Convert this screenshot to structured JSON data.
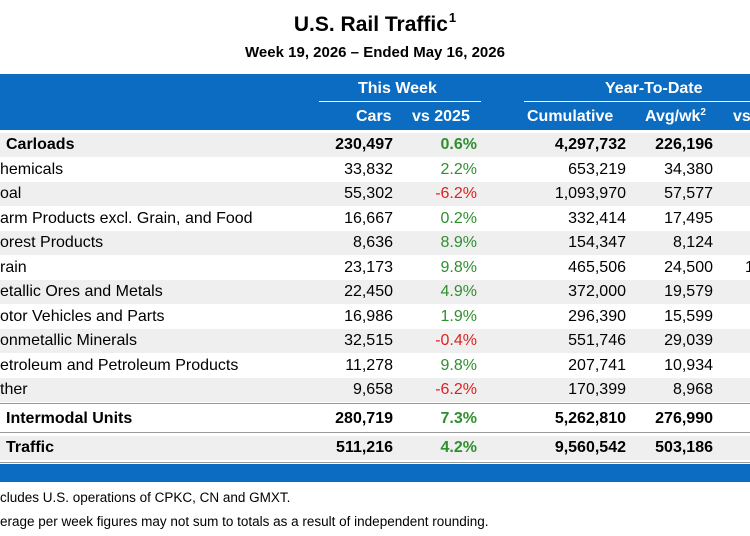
{
  "title": {
    "text": "U.S. Rail Traffic",
    "sup": "1"
  },
  "subtitle": "Week 19, 2026 – Ended May 16, 2026",
  "header": {
    "this_week_group": "This Week",
    "ytd_group": "Year-To-Date",
    "cols": {
      "cars": "Cars",
      "vs_2025": "vs 2025",
      "cumulative": "Cumulative",
      "avg_wk": "Avg/wk",
      "avg_wk_sup": "2",
      "vs_ytd": "vs"
    }
  },
  "rows": [
    {
      "label": "Carloads",
      "cars": "230,497",
      "vs": "0.6%",
      "cumulative": "4,297,732",
      "avg": "226,196",
      "bold": true
    },
    {
      "label": "hemicals",
      "cars": "33,832",
      "vs": "2.2%",
      "cumulative": "653,219",
      "avg": "34,380",
      "bold": false
    },
    {
      "label": "oal",
      "cars": "55,302",
      "vs": "-6.2%",
      "cumulative": "1,093,970",
      "avg": "57,577",
      "bold": false
    },
    {
      "label": "arm Products excl. Grain, and Food",
      "cars": "16,667",
      "vs": "0.2%",
      "cumulative": "332,414",
      "avg": "17,495",
      "bold": false
    },
    {
      "label": "orest Products",
      "cars": "8,636",
      "vs": "8.9%",
      "cumulative": "154,347",
      "avg": "8,124",
      "bold": false
    },
    {
      "label": "rain",
      "cars": "23,173",
      "vs": "9.8%",
      "cumulative": "465,506",
      "avg": "24,500",
      "bold": false,
      "extra": "1"
    },
    {
      "label": "etallic Ores and Metals",
      "cars": "22,450",
      "vs": "4.9%",
      "cumulative": "372,000",
      "avg": "19,579",
      "bold": false
    },
    {
      "label": "otor Vehicles and Parts",
      "cars": "16,986",
      "vs": "1.9%",
      "cumulative": "296,390",
      "avg": "15,599",
      "bold": false
    },
    {
      "label": "onmetallic Minerals",
      "cars": "32,515",
      "vs": "-0.4%",
      "cumulative": "551,746",
      "avg": "29,039",
      "bold": false
    },
    {
      "label": "etroleum and Petroleum Products",
      "cars": "11,278",
      "vs": "9.8%",
      "cumulative": "207,741",
      "avg": "10,934",
      "bold": false
    },
    {
      "label": "ther",
      "cars": "9,658",
      "vs": "-6.2%",
      "cumulative": "170,399",
      "avg": "8,968",
      "bold": false
    },
    {
      "label": "Intermodal Units",
      "cars": "280,719",
      "vs": "7.3%",
      "cumulative": "5,262,810",
      "avg": "276,990",
      "bold": true
    },
    {
      "label": "Traffic",
      "cars": "511,216",
      "vs": "4.2%",
      "cumulative": "9,560,542",
      "avg": "503,186",
      "bold": true
    }
  ],
  "footnotes": [
    "cludes U.S. operations of CPKC, CN and GMXT.",
    "erage per week figures may not sum to totals as a result of independent rounding."
  ],
  "colors": {
    "header_blue": "#0b6cc2",
    "positive": "#2f8f2f",
    "negative": "#e02020",
    "shade": "#efefef"
  }
}
